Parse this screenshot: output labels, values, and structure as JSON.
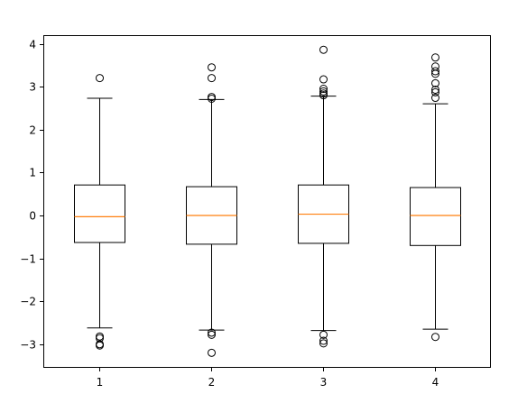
{
  "chart_data": {
    "type": "boxplot",
    "title": "",
    "xlabel": "",
    "ylabel": "",
    "categories": [
      "1",
      "2",
      "3",
      "4"
    ],
    "ylim": [
      -3.55,
      4.2
    ],
    "yticks": [
      {
        "value": -3,
        "label": "−3"
      },
      {
        "value": -2,
        "label": "−2"
      },
      {
        "value": -1,
        "label": "−1"
      },
      {
        "value": 0,
        "label": "0"
      },
      {
        "value": 1,
        "label": "1"
      },
      {
        "value": 2,
        "label": "2"
      },
      {
        "value": 3,
        "label": "3"
      },
      {
        "value": 4,
        "label": "4"
      }
    ],
    "grid": false,
    "boxes": [
      {
        "label": "1",
        "whisker_low": -2.62,
        "q1": -0.63,
        "median": -0.03,
        "q3": 0.71,
        "whisker_high": 2.73,
        "fliers": [
          3.2,
          -2.82,
          -2.86,
          -3.0,
          -3.03
        ]
      },
      {
        "label": "2",
        "whisker_low": -2.67,
        "q1": -0.67,
        "median": 0.0,
        "q3": 0.67,
        "whisker_high": 2.7,
        "fliers": [
          3.45,
          3.2,
          2.76,
          2.72,
          -2.73,
          -2.78,
          -3.2
        ]
      },
      {
        "label": "3",
        "whisker_low": -2.68,
        "q1": -0.65,
        "median": 0.03,
        "q3": 0.71,
        "whisker_high": 2.78,
        "fliers": [
          3.86,
          3.17,
          2.95,
          2.89,
          2.84,
          2.8,
          -2.78,
          -2.92,
          -2.98
        ]
      },
      {
        "label": "4",
        "whisker_low": -2.65,
        "q1": -0.7,
        "median": 0.0,
        "q3": 0.65,
        "whisker_high": 2.6,
        "fliers": [
          3.68,
          3.47,
          3.36,
          3.3,
          3.08,
          2.93,
          2.87,
          2.74,
          -2.83
        ]
      }
    ],
    "colors": {
      "box": "#000000",
      "median": "#ff7f0e",
      "flier": "#000000",
      "axes": "#000000",
      "background": "#ffffff"
    }
  }
}
